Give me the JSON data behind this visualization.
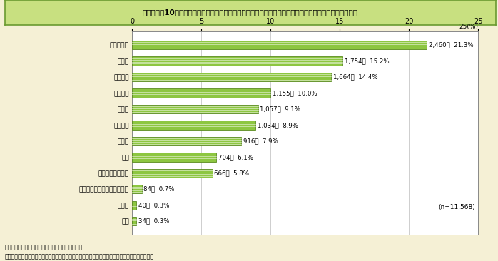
{
  "title": "第１－８－10図　東日本大震災被災地における女性の悩み・暴力相談事業　相談件数の内訳（複数回答）",
  "categories": [
    "心理的問題",
    "生き方",
    "家族問題",
    "対人関係",
    "暮らし",
    "夫婦問題",
    "からだ",
    "仕事",
    "配偶者からの暴力",
    "配偶者からの暴力以外の暴力",
    "その他",
    "不明"
  ],
  "values": [
    21.3,
    15.2,
    14.4,
    10.0,
    9.1,
    8.9,
    7.9,
    6.1,
    5.8,
    0.7,
    0.3,
    0.3
  ],
  "counts": [
    "2,460件",
    "1,754件",
    "1,664件",
    "1,155件",
    "1,057件",
    "1,034件",
    "916件",
    "704件",
    "666件",
    "84件",
    "40件",
    "34件"
  ],
  "percentages": [
    "21.3%",
    "15.2%",
    "14.4%",
    "10.0%",
    "9.1%",
    "8.9%",
    "7.9%",
    "6.1%",
    "5.8%",
    "0.7%",
    "0.3%",
    "0.3%"
  ],
  "bar_color": "#8DC641",
  "bar_edge_color": "#5a8a20",
  "stripe_color": "#ffffff",
  "xlim": [
    0,
    25
  ],
  "xticks": [
    0,
    5,
    10,
    15,
    20,
    25
  ],
  "pct_label": "25(%)",
  "background_color": "#f5f0d5",
  "plot_background": "#ffffff",
  "title_bg_color": "#c8e080",
  "title_border_color": "#6a9a30",
  "note1": "（備考）１．内閣府男女共同参画局資料より作成。",
  "note2": "　　　　２．相談件数は、電話相談及び面接相談の合計（要望・苦情、いたずら、無言を除く）。",
  "n_label": "(n=11,568)"
}
